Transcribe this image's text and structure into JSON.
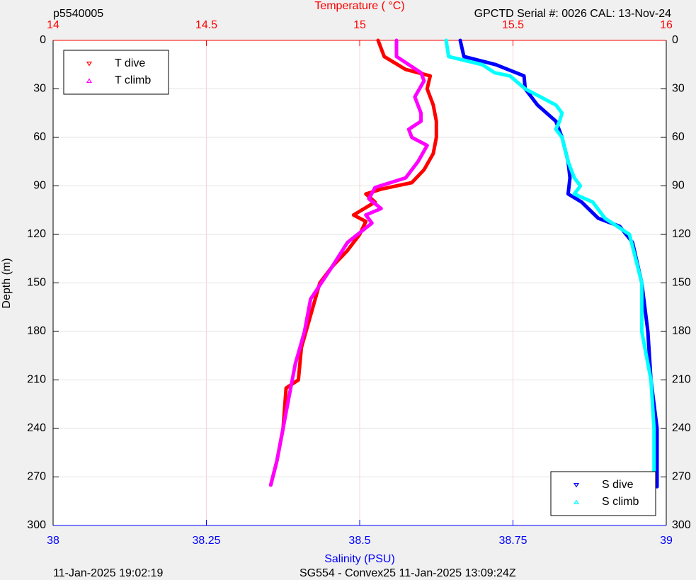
{
  "chart_data": {
    "type": "line",
    "title_left": "p5540005",
    "title_right": "GPCTD Serial #: 0026 CAL: 13-Nov-24",
    "footer_left": "11-Jan-2025 19:02:19",
    "footer_right": "SG554 - Convex25 11-Jan-2025 13:09:24Z",
    "xlabel": "Salinity (PSU)",
    "xlabel_color": "#0000ff",
    "x2label": "Temperature (    °C)",
    "x2label_color": "#ff0000",
    "ylabel": "Depth (m)",
    "xlim": [
      38,
      39
    ],
    "xticks": [
      38,
      38.25,
      38.5,
      38.75,
      39
    ],
    "x2lim": [
      14,
      16
    ],
    "x2ticks": [
      14,
      14.5,
      15,
      15.5,
      16
    ],
    "ylim": [
      0,
      300
    ],
    "y_reversed": true,
    "yticks": [
      0,
      30,
      60,
      90,
      120,
      150,
      180,
      210,
      240,
      270,
      300
    ],
    "grid": true,
    "series": [
      {
        "name": "T dive",
        "color": "#ff0000",
        "marker": "down",
        "axis": "x2",
        "legend": "upper left",
        "x": [
          15.06,
          15.08,
          15.15,
          15.23,
          15.22,
          15.24,
          15.25,
          15.25,
          15.24,
          15.21,
          15.17,
          15.07,
          15.02,
          15.05,
          14.98,
          15.02,
          15.0,
          14.96,
          14.91,
          14.87,
          14.84,
          14.81,
          14.8,
          14.76,
          14.75,
          14.73,
          14.71
        ],
        "y": [
          0,
          10,
          18,
          22,
          30,
          40,
          50,
          60,
          70,
          80,
          88,
          92,
          95,
          100,
          108,
          112,
          120,
          130,
          140,
          150,
          170,
          190,
          210,
          215,
          240,
          260,
          275
        ]
      },
      {
        "name": "T climb",
        "color": "#ff00ff",
        "marker": "up",
        "axis": "x2",
        "legend": "upper left",
        "x": [
          15.12,
          15.12,
          15.2,
          15.21,
          15.18,
          15.2,
          15.2,
          15.16,
          15.17,
          15.22,
          15.19,
          15.15,
          15.05,
          15.03,
          15.07,
          15.02,
          15.04,
          14.96,
          14.91,
          14.84,
          14.82,
          14.79,
          14.77,
          14.75,
          14.73,
          14.71
        ],
        "y": [
          0,
          10,
          20,
          25,
          35,
          45,
          50,
          55,
          60,
          65,
          75,
          85,
          91,
          98,
          104,
          108,
          113,
          125,
          140,
          160,
          180,
          200,
          220,
          240,
          260,
          275
        ]
      },
      {
        "name": "S dive",
        "color": "#0000ff",
        "marker": "down",
        "axis": "x",
        "legend": "lower right",
        "x": [
          38.664,
          38.67,
          38.722,
          38.768,
          38.77,
          38.79,
          38.82,
          38.83,
          38.84,
          38.843,
          38.84,
          38.862,
          38.889,
          38.924,
          38.945,
          38.96,
          38.97,
          38.975,
          38.985,
          38.985
        ],
        "y": [
          0,
          10,
          15,
          22,
          30,
          40,
          50,
          60,
          75,
          85,
          95,
          100,
          110,
          115,
          125,
          150,
          180,
          210,
          240,
          276
        ]
      },
      {
        "name": "S climb",
        "color": "#00ffff",
        "marker": "up",
        "axis": "x",
        "legend": "lower right",
        "x": [
          38.641,
          38.645,
          38.7,
          38.72,
          38.745,
          38.77,
          38.82,
          38.83,
          38.826,
          38.82,
          38.83,
          38.84,
          38.85,
          38.86,
          38.85,
          38.88,
          38.9,
          38.94,
          38.96,
          38.96,
          38.975,
          38.98,
          38.98
        ],
        "y": [
          0,
          10,
          15,
          20,
          22,
          30,
          40,
          45,
          50,
          55,
          60,
          75,
          85,
          90,
          95,
          100,
          110,
          120,
          150,
          180,
          210,
          240,
          275
        ]
      }
    ]
  }
}
